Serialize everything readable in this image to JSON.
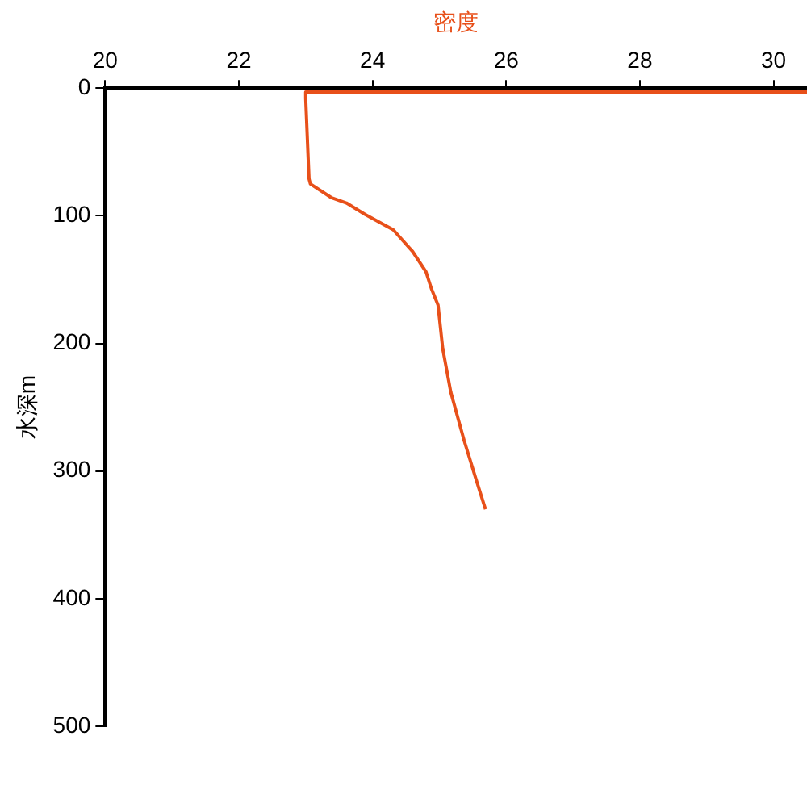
{
  "chart_data": {
    "type": "line",
    "xlabel": "密度",
    "ylabel": "水深m",
    "xlim": [
      20,
      30.5
    ],
    "xticks": [
      20,
      22,
      24,
      26,
      28,
      30
    ],
    "ylim": [
      500,
      0
    ],
    "yticks": [
      0,
      100,
      200,
      300,
      400,
      500
    ],
    "grid": false,
    "legend": false,
    "marker": "none",
    "line_style": "solid",
    "series": [
      {
        "color": "#e8501a",
        "x": [
          30.5,
          23.0,
          23.0,
          23.05,
          23.07,
          23.39,
          23.61,
          23.89,
          24.31,
          24.6,
          24.8,
          24.88,
          24.98,
          25.05,
          25.17,
          25.37,
          25.54,
          25.69
        ],
        "values": [
          3,
          3,
          8,
          71,
          75,
          86,
          90,
          99,
          111,
          128,
          144,
          157,
          170,
          204,
          238,
          276,
          305,
          330
        ]
      }
    ]
  }
}
